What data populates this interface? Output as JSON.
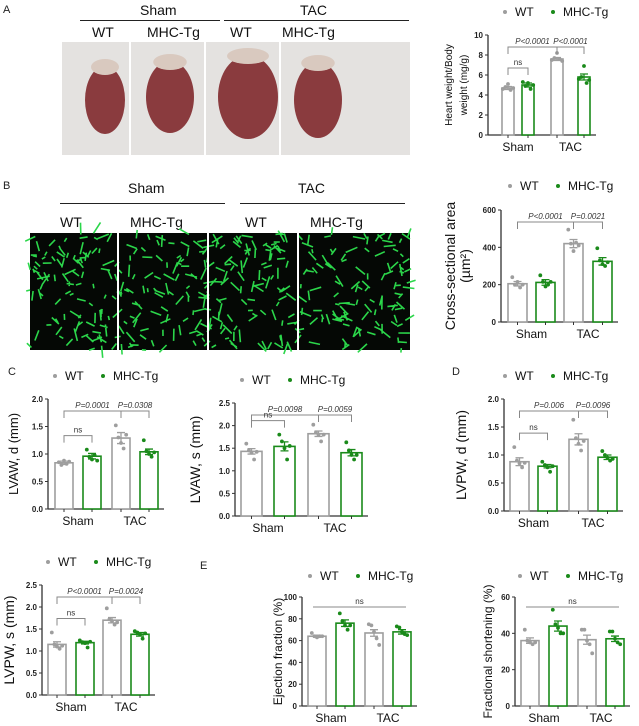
{
  "panels": {
    "a": "A",
    "b": "B",
    "c": "C",
    "d": "D",
    "e": "E"
  },
  "legend": {
    "wt": "WT",
    "tg": "MHC-Tg"
  },
  "colors": {
    "wt": "#9e9e9e",
    "tg": "#1a8a1a",
    "photo_bg": "#e4e2e0",
    "heart": "#8a3b3e",
    "micro_bg": "#050805",
    "micro_fg": "#2bd64a"
  },
  "photo_a": {
    "sham": "Sham",
    "tac": "TAC",
    "lanes": [
      "WT",
      "MHC-Tg",
      "WT",
      "MHC-Tg"
    ]
  },
  "photo_b": {
    "sham": "Sham",
    "tac": "TAC",
    "lanes": [
      "WT",
      "MHC-Tg",
      "WT",
      "MHC-Tg"
    ]
  },
  "chart_data": [
    {
      "type": "bar",
      "ylabel": [
        "Heart weight/Body",
        "weight (mg/g)"
      ],
      "groups": [
        "Sham",
        "TAC"
      ],
      "series_names": [
        "WT",
        "MHC-Tg"
      ],
      "ylim": [
        0,
        10
      ],
      "ticks": [
        "0",
        "2",
        "4",
        "6",
        "8",
        "10"
      ],
      "means": [
        4.7,
        5.0,
        7.6,
        5.8
      ],
      "sem": [
        0.15,
        0.2,
        0.15,
        0.3
      ],
      "points": [
        [
          4.6,
          4.8,
          5.1,
          4.5,
          4.7
        ],
        [
          5.3,
          4.9,
          5.2,
          4.6,
          5.0
        ],
        [
          7.5,
          7.7,
          8.2,
          7.6,
          7.4
        ],
        [
          5.6,
          5.8,
          6.9,
          5.2,
          5.5
        ]
      ],
      "stats": {
        "ns": "ns",
        "p_tac": "P<0.0001",
        "p_tg": "P<0.0001"
      }
    },
    {
      "type": "bar",
      "ylabel": [
        "Cross-sectional area",
        "(µm²)"
      ],
      "groups": [
        "Sham",
        "TAC"
      ],
      "series_names": [
        "WT",
        "MHC-Tg"
      ],
      "ylim": [
        0,
        600
      ],
      "ticks": [
        "0",
        "200",
        "400",
        "600"
      ],
      "means": [
        205,
        212,
        420,
        325
      ],
      "sem": [
        12,
        15,
        22,
        20
      ],
      "points": [
        [
          240,
          200,
          215,
          185,
          200
        ],
        [
          250,
          215,
          190,
          200,
          215
        ],
        [
          495,
          420,
          380,
          425,
          410
        ],
        [
          395,
          330,
          310,
          300,
          320
        ]
      ],
      "stats": {
        "p_tac": "P<0.0001",
        "p_tg": "P=0.0021"
      }
    },
    {
      "type": "bar",
      "ylabel": [
        "LVAW, d  (mm)"
      ],
      "groups": [
        "Sham",
        "TAC"
      ],
      "series_names": [
        "WT",
        "MHC-Tg"
      ],
      "ylim": [
        0,
        2.0
      ],
      "ticks": [
        "0.0",
        "0.5",
        "1.0",
        "1.5",
        "2.0"
      ],
      "means": [
        0.84,
        0.96,
        1.29,
        1.04
      ],
      "sem": [
        0.03,
        0.05,
        0.1,
        0.05
      ],
      "points": [
        [
          0.85,
          0.8,
          0.88,
          0.82,
          0.86
        ],
        [
          1.08,
          0.95,
          0.9,
          0.98,
          0.88
        ],
        [
          1.52,
          1.3,
          1.2,
          1.1,
          1.35
        ],
        [
          1.25,
          1.05,
          1.0,
          0.95,
          1.03
        ]
      ],
      "stats": {
        "ns": "ns",
        "p_tac": "P=0.0001",
        "p_tg": "P=0.0308"
      }
    },
    {
      "type": "bar",
      "ylabel": [
        "LVAW, s  (mm)"
      ],
      "groups": [
        "Sham",
        "TAC"
      ],
      "series_names": [
        "WT",
        "MHC-Tg"
      ],
      "ylim": [
        0,
        2.5
      ],
      "ticks": [
        "0.0",
        "0.5",
        "1.0",
        "1.5",
        "2.0",
        "2.5"
      ],
      "means": [
        1.43,
        1.54,
        1.82,
        1.4
      ],
      "sem": [
        0.06,
        0.1,
        0.06,
        0.07
      ],
      "points": [
        [
          1.6,
          1.45,
          1.4,
          1.25,
          1.42
        ],
        [
          1.8,
          1.65,
          1.5,
          1.25,
          1.55
        ],
        [
          2.02,
          1.85,
          1.8,
          1.65,
          1.8
        ],
        [
          1.63,
          1.45,
          1.35,
          1.25,
          1.35
        ]
      ],
      "stats": {
        "ns": "ns",
        "p_tac": "P=0.0098",
        "p_tg": "P=0.0059"
      }
    },
    {
      "type": "bar",
      "ylabel": [
        "LVPW, d (mm)"
      ],
      "groups": [
        "Sham",
        "TAC"
      ],
      "series_names": [
        "WT",
        "MHC-Tg"
      ],
      "ylim": [
        0,
        2.0
      ],
      "ticks": [
        "0.0",
        "0.5",
        "1.0",
        "1.5",
        "2.0"
      ],
      "means": [
        0.88,
        0.8,
        1.28,
        0.96
      ],
      "sem": [
        0.07,
        0.03,
        0.1,
        0.04
      ],
      "points": [
        [
          1.14,
          0.9,
          0.85,
          0.78,
          0.86
        ],
        [
          0.88,
          0.82,
          0.78,
          0.7,
          0.8
        ],
        [
          1.63,
          1.3,
          1.2,
          1.08,
          1.25
        ],
        [
          1.07,
          1.0,
          0.95,
          0.9,
          0.93
        ]
      ],
      "stats": {
        "ns": "ns",
        "p_tac": "P=0.006",
        "p_tg": "P=0.0096"
      }
    },
    {
      "type": "bar",
      "ylabel": [
        "LVPW, s (mm)"
      ],
      "groups": [
        "Sham",
        "TAC"
      ],
      "series_names": [
        "WT",
        "MHC-Tg"
      ],
      "ylim": [
        0,
        2.5
      ],
      "ticks": [
        "0.0",
        "0.5",
        "1.0",
        "1.5",
        "2.0",
        "2.5"
      ],
      "means": [
        1.15,
        1.19,
        1.7,
        1.38
      ],
      "sem": [
        0.06,
        0.03,
        0.06,
        0.04
      ],
      "points": [
        [
          1.42,
          1.15,
          1.1,
          1.05,
          1.12
        ],
        [
          1.24,
          1.2,
          1.18,
          1.08,
          1.21
        ],
        [
          1.97,
          1.72,
          1.68,
          1.6,
          1.65
        ],
        [
          1.45,
          1.42,
          1.38,
          1.28,
          1.4
        ]
      ],
      "stats": {
        "ns": "ns",
        "p_tac": "P<0.0001",
        "p_tg": "P=0.0024"
      }
    },
    {
      "type": "bar",
      "ylabel": [
        "Ejection fraction (%)"
      ],
      "groups": [
        "Sham",
        "TAC"
      ],
      "series_names": [
        "WT",
        "MHC-Tg"
      ],
      "ylim": [
        0,
        100
      ],
      "ticks": [
        "0",
        "20",
        "40",
        "60",
        "80",
        "100"
      ],
      "means": [
        64,
        76,
        67,
        68
      ],
      "sem": [
        1,
        3,
        3,
        2
      ],
      "points": [
        [
          67,
          64,
          63,
          64,
          64
        ],
        [
          85,
          78,
          74,
          70,
          74
        ],
        [
          75,
          74,
          68,
          62,
          56
        ],
        [
          73,
          72,
          68,
          66,
          65
        ]
      ],
      "stats": {
        "ns_all": "ns"
      }
    },
    {
      "type": "bar",
      "ylabel": [
        "Fractional shortening (%)"
      ],
      "groups": [
        "Sham",
        "TAC"
      ],
      "series_names": [
        "WT",
        "MHC-Tg"
      ],
      "ylim": [
        0,
        60
      ],
      "ticks": [
        "0",
        "20",
        "40",
        "60"
      ],
      "means": [
        36,
        44,
        36.5,
        37
      ],
      "sem": [
        1.5,
        2.8,
        2.5,
        1.5
      ],
      "points": [
        [
          42,
          36,
          35,
          34,
          35
        ],
        [
          53,
          45,
          43,
          40,
          40
        ],
        [
          42,
          42,
          36,
          34,
          29
        ],
        [
          41,
          41,
          37,
          35,
          34
        ]
      ],
      "stats": {
        "ns_all": "ns"
      }
    }
  ]
}
